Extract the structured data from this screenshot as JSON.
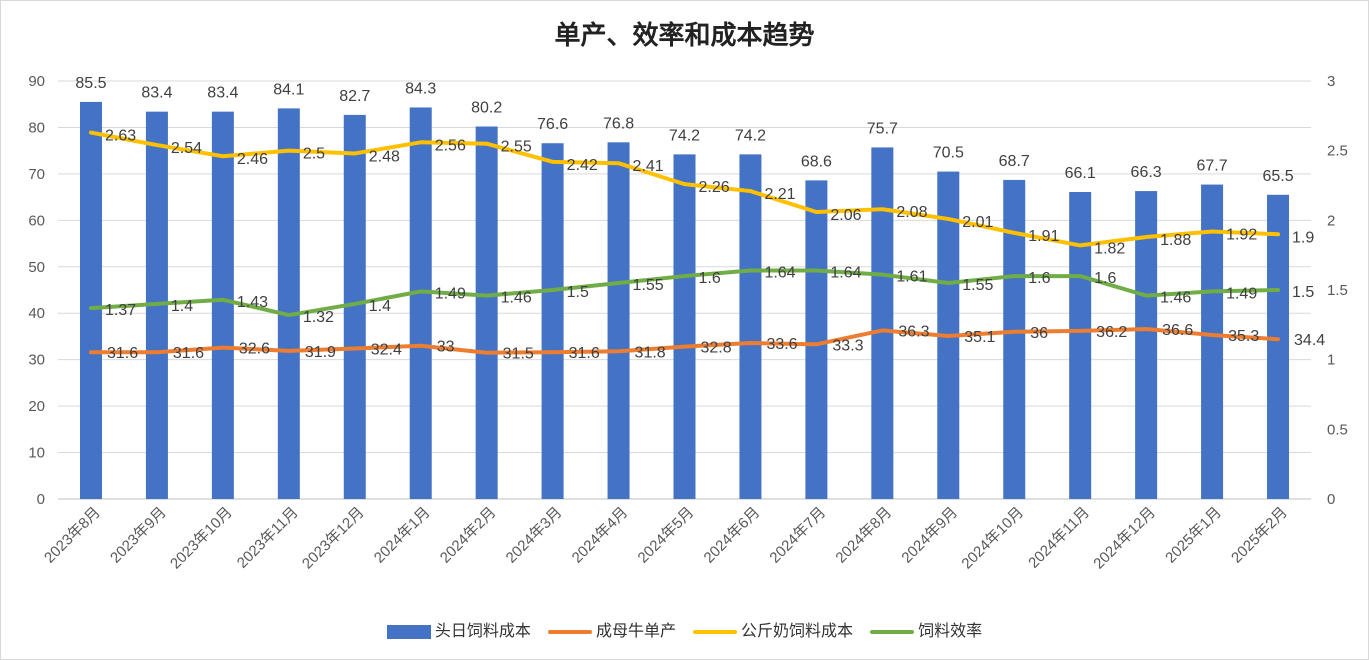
{
  "chart_data": {
    "type": "bar",
    "title": "单产、效率和成本趋势",
    "categories": [
      "2023年8月",
      "2023年9月",
      "2023年10月",
      "2023年11月",
      "2023年12月",
      "2024年1月",
      "2024年2月",
      "2024年3月",
      "2024年4月",
      "2024年5月",
      "2024年6月",
      "2024年7月",
      "2024年8月",
      "2024年9月",
      "2024年10月",
      "2024年11月",
      "2024年12月",
      "2025年1月",
      "2025年2月"
    ],
    "y_left": {
      "lim": [
        0,
        90
      ],
      "ticks": [
        "0",
        "10",
        "20",
        "30",
        "40",
        "50",
        "60",
        "70",
        "80",
        "90"
      ]
    },
    "y_right": {
      "lim": [
        0,
        3
      ],
      "ticks": [
        "0",
        "0.5",
        "1",
        "1.5",
        "2",
        "2.5",
        "3"
      ]
    },
    "grid": true,
    "legend_position": "bottom",
    "series": [
      {
        "name": "头日饲料成本",
        "type": "bar",
        "axis": "left",
        "color": "#4472C4",
        "values": [
          85.5,
          83.4,
          83.4,
          84.1,
          82.7,
          84.3,
          80.2,
          76.6,
          76.8,
          74.2,
          74.2,
          68.6,
          75.7,
          70.5,
          68.7,
          66.1,
          66.3,
          67.7,
          65.5
        ]
      },
      {
        "name": "成母牛单产",
        "type": "line",
        "axis": "left",
        "color": "#ED7D31",
        "values": [
          31.6,
          31.6,
          32.6,
          31.9,
          32.4,
          33,
          31.5,
          31.6,
          31.8,
          32.8,
          33.6,
          33.3,
          36.3,
          35.1,
          36,
          36.2,
          36.6,
          35.3,
          34.4
        ]
      },
      {
        "name": "公斤奶饲料成本",
        "type": "line",
        "axis": "right",
        "color": "#FFC000",
        "values": [
          2.63,
          2.54,
          2.46,
          2.5,
          2.48,
          2.56,
          2.55,
          2.42,
          2.41,
          2.26,
          2.21,
          2.06,
          2.08,
          2.01,
          1.91,
          1.82,
          1.88,
          1.92,
          1.9
        ]
      },
      {
        "name": "饲料效率",
        "type": "line",
        "axis": "right",
        "color": "#70AD47",
        "values": [
          1.37,
          1.4,
          1.43,
          1.32,
          1.4,
          1.49,
          1.46,
          1.5,
          1.55,
          1.6,
          1.64,
          1.64,
          1.61,
          1.55,
          1.6,
          1.6,
          1.46,
          1.49,
          1.5
        ]
      }
    ]
  }
}
